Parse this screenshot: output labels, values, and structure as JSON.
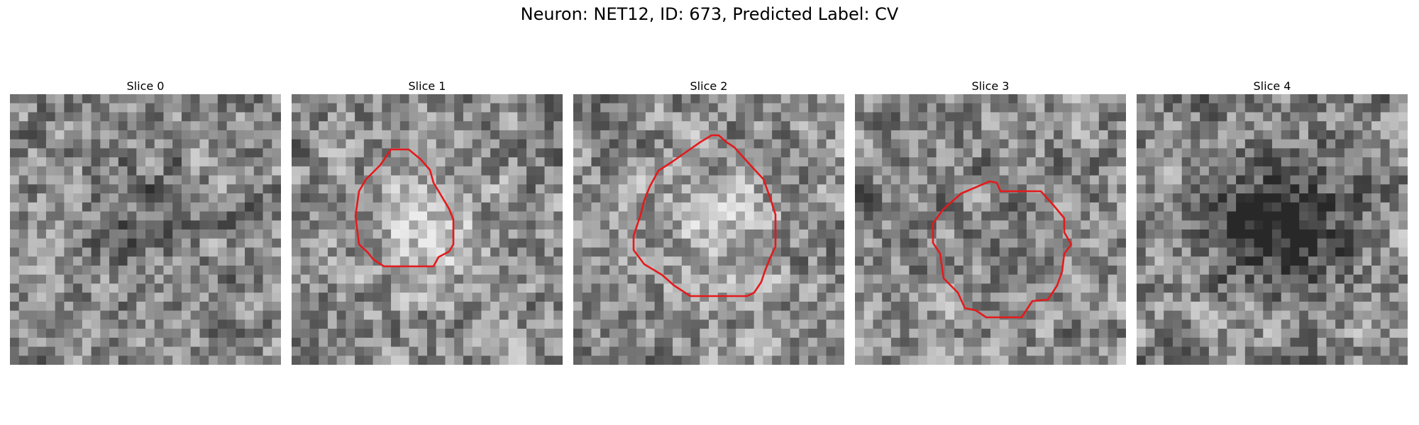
{
  "title": "Neuron: NET12, ID: 673, Predicted Label: CV",
  "panels": [
    {
      "title": "Slice 0",
      "seed": 11,
      "darkness": 0.15,
      "has_outline": false
    },
    {
      "title": "Slice 1",
      "seed": 23,
      "darkness": -0.25,
      "has_outline": true
    },
    {
      "title": "Slice 2",
      "seed": 37,
      "darkness": -0.2,
      "has_outline": true
    },
    {
      "title": "Slice 3",
      "seed": 51,
      "darkness": 0.05,
      "has_outline": true
    },
    {
      "title": "Slice 4",
      "seed": 67,
      "darkness": 0.45,
      "has_outline": false
    }
  ],
  "colors": {
    "outline": "#e41a1c"
  }
}
